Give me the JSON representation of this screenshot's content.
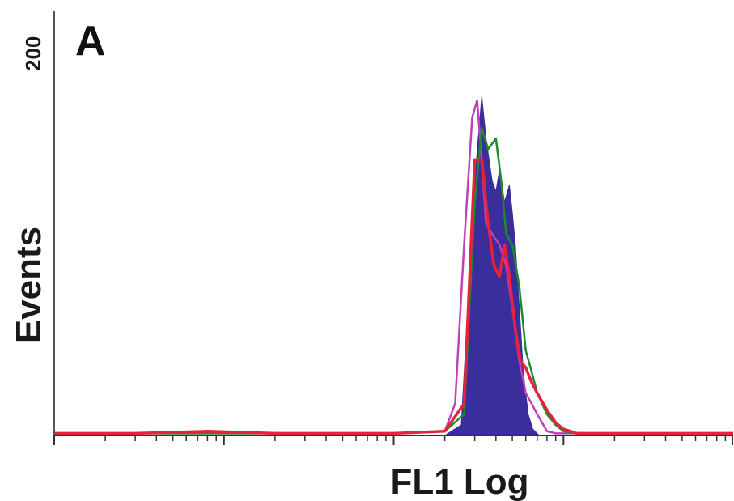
{
  "chart_data": {
    "type": "area",
    "panel_label": "A",
    "title": "",
    "xlabel": "FL1 Log",
    "ylabel": "Events",
    "x_scale": "log",
    "xlim": [
      1,
      10000
    ],
    "ylim": [
      0,
      200
    ],
    "y_tick_labels": [
      {
        "value": 200,
        "label": "200"
      }
    ],
    "grid": false,
    "legend": "none",
    "series": [
      {
        "color": "#3a2d9c",
        "style": "filled",
        "x": [
          1,
          5,
          20,
          100,
          200,
          250,
          300,
          330,
          350,
          380,
          400,
          420,
          450,
          480,
          500,
          520,
          550,
          580,
          620,
          660,
          720,
          800,
          900,
          1000,
          2000,
          10000
        ],
        "y": [
          0,
          0,
          0,
          0,
          0,
          5,
          120,
          160,
          140,
          120,
          115,
          125,
          110,
          118,
          105,
          90,
          60,
          30,
          10,
          3,
          0,
          0,
          0,
          0,
          0,
          0
        ]
      },
      {
        "color": "#c33fba",
        "style": "line",
        "x": [
          1,
          5,
          20,
          100,
          200,
          230,
          260,
          290,
          310,
          330,
          350,
          380,
          420,
          460,
          500,
          550,
          600,
          650,
          700,
          800,
          900,
          1000,
          10000
        ],
        "y": [
          1,
          1,
          1,
          1,
          2,
          15,
          90,
          150,
          158,
          130,
          100,
          95,
          90,
          80,
          60,
          35,
          20,
          15,
          10,
          2,
          1,
          1,
          1
        ]
      },
      {
        "color": "#1e8a2c",
        "style": "line",
        "x": [
          1,
          5,
          20,
          100,
          200,
          260,
          300,
          330,
          360,
          400,
          430,
          460,
          500,
          550,
          600,
          650,
          700,
          800,
          900,
          1000,
          1200,
          10000
        ],
        "y": [
          1,
          1,
          1,
          1,
          2,
          10,
          110,
          145,
          135,
          140,
          120,
          95,
          90,
          70,
          40,
          30,
          20,
          10,
          5,
          2,
          1,
          1
        ]
      },
      {
        "color": "#e8223a",
        "style": "line",
        "x": [
          1,
          3,
          8,
          20,
          100,
          200,
          260,
          300,
          330,
          360,
          390,
          420,
          450,
          480,
          520,
          560,
          600,
          650,
          700,
          800,
          900,
          1000,
          1200,
          2000,
          10000
        ],
        "y": [
          1,
          1,
          2,
          1,
          1,
          2,
          15,
          130,
          130,
          100,
          80,
          75,
          90,
          75,
          50,
          35,
          32,
          25,
          20,
          12,
          6,
          3,
          1,
          1,
          1
        ]
      }
    ]
  }
}
